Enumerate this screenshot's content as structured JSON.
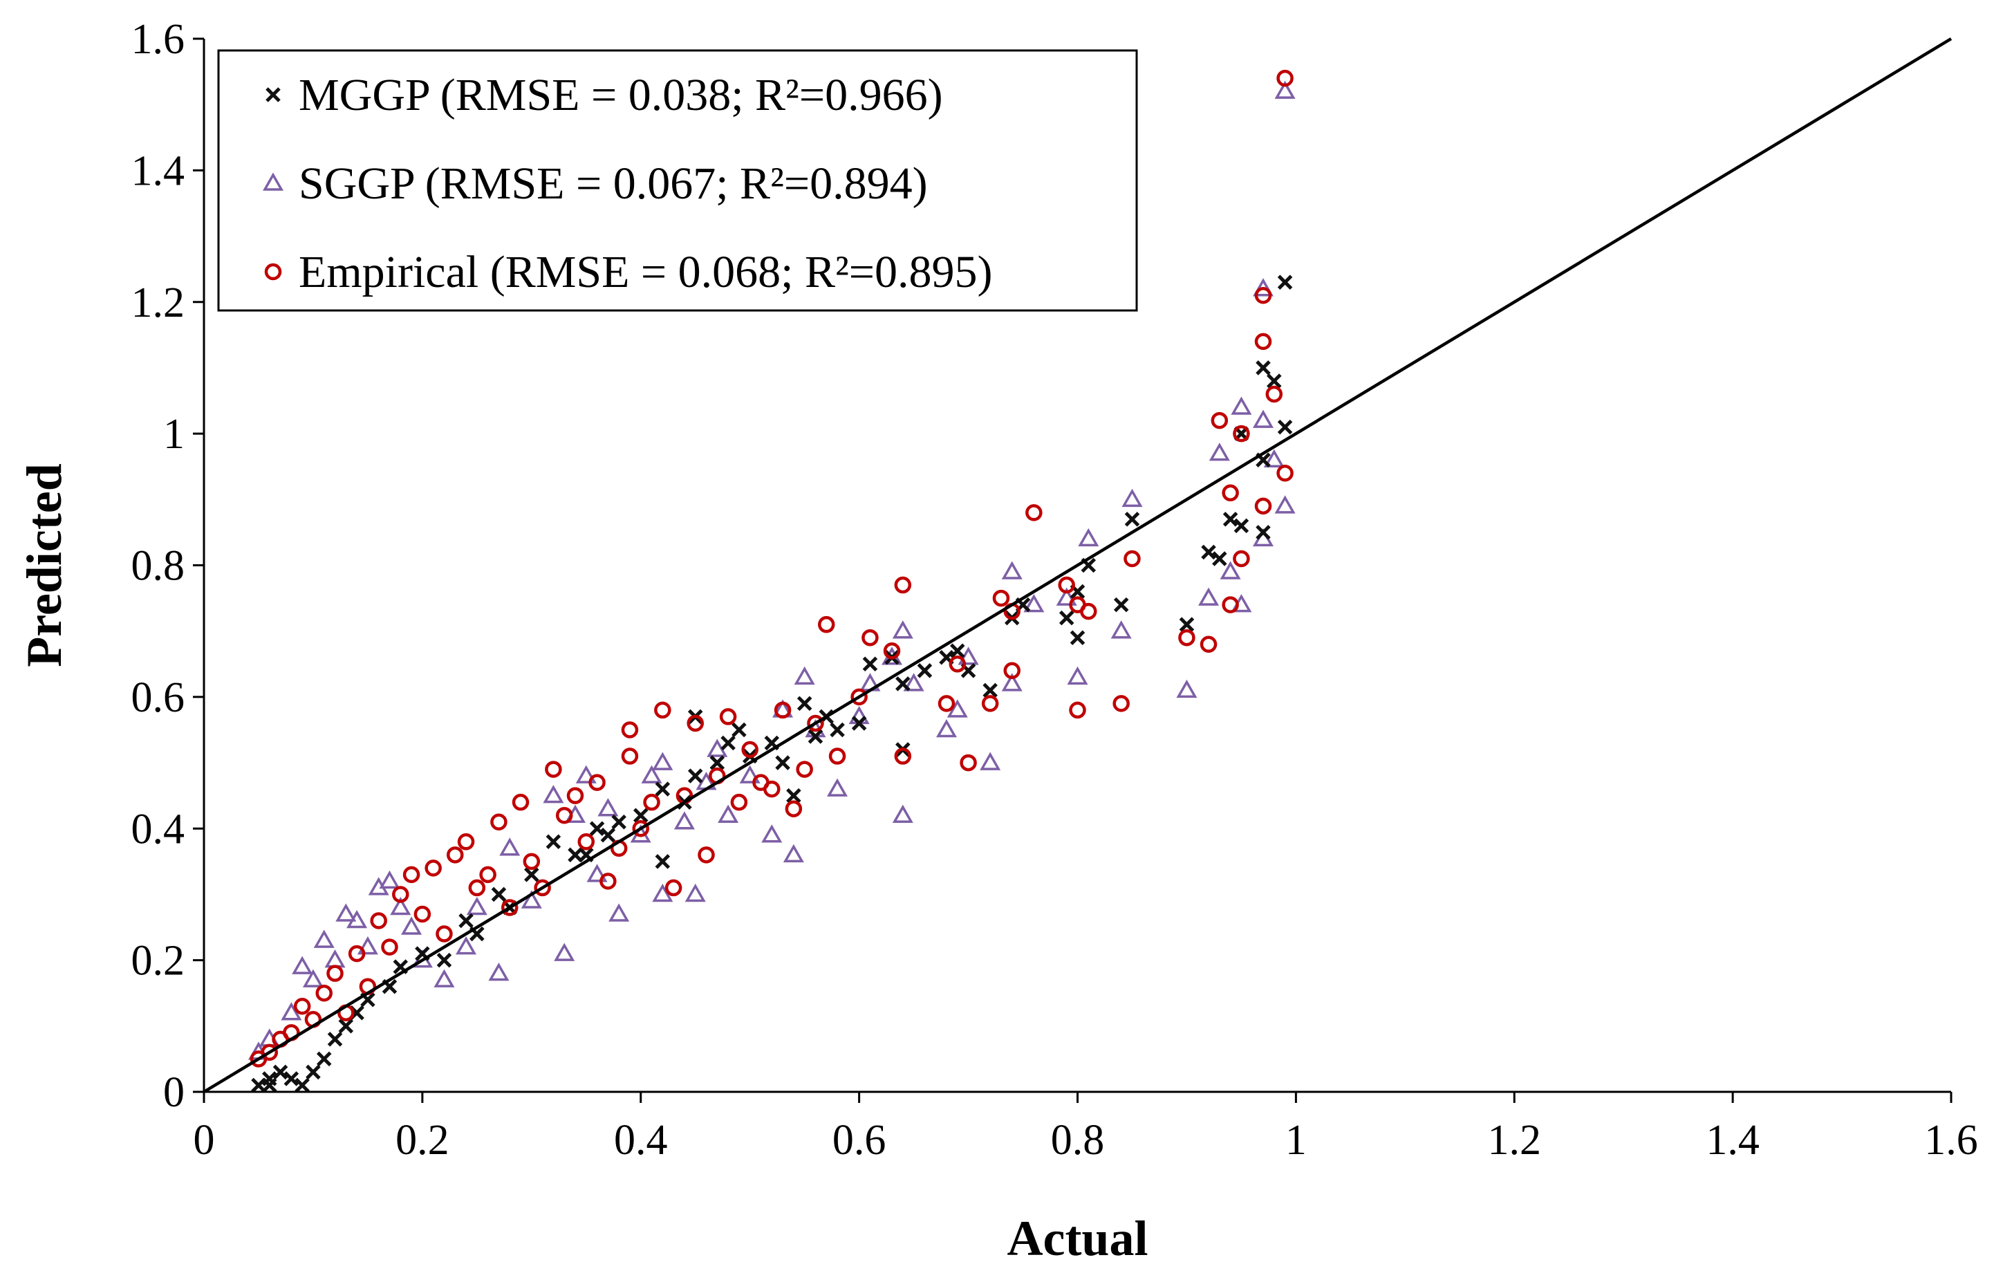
{
  "chart_data": {
    "type": "scatter",
    "title": "",
    "xlabel": "Actual",
    "ylabel": "Predicted",
    "xlim": [
      0,
      1.6
    ],
    "ylim": [
      0,
      1.6
    ],
    "xticks": [
      "0",
      "0.2",
      "0.4",
      "0.6",
      "0.8",
      "1",
      "1.2",
      "1.4",
      "1.6"
    ],
    "yticks": [
      "0",
      "0.2",
      "0.4",
      "0.6",
      "0.8",
      "1",
      "1.2",
      "1.4",
      "1.6"
    ],
    "grid": false,
    "legend_position": "top-left",
    "reference_line": {
      "label": "1:1 line",
      "from": [
        0,
        0
      ],
      "to": [
        1.6,
        1.6
      ]
    },
    "series": [
      {
        "name": "MGGP (RMSE = 0.038; R²=0.966)",
        "marker": "x",
        "color": "#111111",
        "points": [
          [
            0.05,
            0.01
          ],
          [
            0.06,
            0.02
          ],
          [
            0.07,
            0.03
          ],
          [
            0.06,
            0.01
          ],
          [
            0.08,
            0.02
          ],
          [
            0.09,
            0.01
          ],
          [
            0.1,
            0.03
          ],
          [
            0.11,
            0.05
          ],
          [
            0.12,
            0.08
          ],
          [
            0.13,
            0.1
          ],
          [
            0.14,
            0.12
          ],
          [
            0.15,
            0.14
          ],
          [
            0.17,
            0.16
          ],
          [
            0.18,
            0.19
          ],
          [
            0.2,
            0.21
          ],
          [
            0.22,
            0.2
          ],
          [
            0.24,
            0.26
          ],
          [
            0.25,
            0.24
          ],
          [
            0.27,
            0.3
          ],
          [
            0.28,
            0.28
          ],
          [
            0.3,
            0.33
          ],
          [
            0.32,
            0.38
          ],
          [
            0.34,
            0.36
          ],
          [
            0.35,
            0.36
          ],
          [
            0.36,
            0.4
          ],
          [
            0.37,
            0.39
          ],
          [
            0.38,
            0.41
          ],
          [
            0.4,
            0.42
          ],
          [
            0.42,
            0.46
          ],
          [
            0.42,
            0.35
          ],
          [
            0.44,
            0.44
          ],
          [
            0.45,
            0.48
          ],
          [
            0.45,
            0.57
          ],
          [
            0.47,
            0.5
          ],
          [
            0.48,
            0.53
          ],
          [
            0.49,
            0.55
          ],
          [
            0.5,
            0.51
          ],
          [
            0.52,
            0.53
          ],
          [
            0.53,
            0.5
          ],
          [
            0.54,
            0.45
          ],
          [
            0.55,
            0.59
          ],
          [
            0.56,
            0.54
          ],
          [
            0.57,
            0.57
          ],
          [
            0.58,
            0.55
          ],
          [
            0.6,
            0.56
          ],
          [
            0.61,
            0.65
          ],
          [
            0.63,
            0.66
          ],
          [
            0.64,
            0.62
          ],
          [
            0.64,
            0.52
          ],
          [
            0.66,
            0.64
          ],
          [
            0.68,
            0.66
          ],
          [
            0.69,
            0.67
          ],
          [
            0.7,
            0.64
          ],
          [
            0.72,
            0.61
          ],
          [
            0.74,
            0.72
          ],
          [
            0.75,
            0.74
          ],
          [
            0.79,
            0.72
          ],
          [
            0.8,
            0.69
          ],
          [
            0.8,
            0.76
          ],
          [
            0.81,
            0.8
          ],
          [
            0.84,
            0.74
          ],
          [
            0.85,
            0.87
          ],
          [
            0.9,
            0.71
          ],
          [
            0.92,
            0.82
          ],
          [
            0.93,
            0.81
          ],
          [
            0.94,
            0.87
          ],
          [
            0.95,
            0.86
          ],
          [
            0.95,
            1.0
          ],
          [
            0.97,
            0.85
          ],
          [
            0.97,
            0.96
          ],
          [
            0.97,
            1.1
          ],
          [
            0.98,
            1.08
          ],
          [
            0.99,
            1.23
          ],
          [
            0.99,
            1.01
          ]
        ]
      },
      {
        "name": "SGGP (RMSE = 0.067; R²=0.894)",
        "marker": "triangle",
        "color": "#7d5fa6",
        "points": [
          [
            0.05,
            0.06
          ],
          [
            0.06,
            0.08
          ],
          [
            0.08,
            0.12
          ],
          [
            0.09,
            0.19
          ],
          [
            0.1,
            0.17
          ],
          [
            0.11,
            0.23
          ],
          [
            0.12,
            0.2
          ],
          [
            0.13,
            0.27
          ],
          [
            0.14,
            0.26
          ],
          [
            0.15,
            0.22
          ],
          [
            0.16,
            0.31
          ],
          [
            0.17,
            0.32
          ],
          [
            0.18,
            0.28
          ],
          [
            0.19,
            0.25
          ],
          [
            0.2,
            0.2
          ],
          [
            0.22,
            0.17
          ],
          [
            0.24,
            0.22
          ],
          [
            0.25,
            0.28
          ],
          [
            0.27,
            0.18
          ],
          [
            0.28,
            0.37
          ],
          [
            0.3,
            0.29
          ],
          [
            0.32,
            0.45
          ],
          [
            0.33,
            0.21
          ],
          [
            0.34,
            0.42
          ],
          [
            0.35,
            0.48
          ],
          [
            0.36,
            0.33
          ],
          [
            0.37,
            0.43
          ],
          [
            0.38,
            0.27
          ],
          [
            0.4,
            0.39
          ],
          [
            0.41,
            0.48
          ],
          [
            0.42,
            0.5
          ],
          [
            0.42,
            0.3
          ],
          [
            0.44,
            0.41
          ],
          [
            0.45,
            0.3
          ],
          [
            0.46,
            0.47
          ],
          [
            0.47,
            0.52
          ],
          [
            0.48,
            0.42
          ],
          [
            0.5,
            0.48
          ],
          [
            0.52,
            0.39
          ],
          [
            0.53,
            0.58
          ],
          [
            0.54,
            0.36
          ],
          [
            0.55,
            0.63
          ],
          [
            0.56,
            0.55
          ],
          [
            0.58,
            0.46
          ],
          [
            0.6,
            0.57
          ],
          [
            0.61,
            0.62
          ],
          [
            0.63,
            0.66
          ],
          [
            0.64,
            0.7
          ],
          [
            0.64,
            0.42
          ],
          [
            0.65,
            0.62
          ],
          [
            0.68,
            0.55
          ],
          [
            0.69,
            0.58
          ],
          [
            0.7,
            0.66
          ],
          [
            0.72,
            0.5
          ],
          [
            0.74,
            0.79
          ],
          [
            0.74,
            0.62
          ],
          [
            0.76,
            0.74
          ],
          [
            0.79,
            0.75
          ],
          [
            0.8,
            0.63
          ],
          [
            0.81,
            0.84
          ],
          [
            0.84,
            0.7
          ],
          [
            0.85,
            0.9
          ],
          [
            0.9,
            0.61
          ],
          [
            0.92,
            0.75
          ],
          [
            0.93,
            0.97
          ],
          [
            0.94,
            0.79
          ],
          [
            0.95,
            0.74
          ],
          [
            0.95,
            1.04
          ],
          [
            0.97,
            0.84
          ],
          [
            0.97,
            1.02
          ],
          [
            0.97,
            1.22
          ],
          [
            0.98,
            0.96
          ],
          [
            0.99,
            0.89
          ],
          [
            0.99,
            1.52
          ]
        ]
      },
      {
        "name": "Empirical (RMSE = 0.068; R²=0.895)",
        "marker": "circle",
        "color": "#c00000",
        "points": [
          [
            0.05,
            0.05
          ],
          [
            0.06,
            0.06
          ],
          [
            0.07,
            0.08
          ],
          [
            0.08,
            0.09
          ],
          [
            0.09,
            0.13
          ],
          [
            0.1,
            0.11
          ],
          [
            0.11,
            0.15
          ],
          [
            0.12,
            0.18
          ],
          [
            0.13,
            0.12
          ],
          [
            0.14,
            0.21
          ],
          [
            0.15,
            0.16
          ],
          [
            0.16,
            0.26
          ],
          [
            0.17,
            0.22
          ],
          [
            0.18,
            0.3
          ],
          [
            0.19,
            0.33
          ],
          [
            0.2,
            0.27
          ],
          [
            0.21,
            0.34
          ],
          [
            0.22,
            0.24
          ],
          [
            0.23,
            0.36
          ],
          [
            0.24,
            0.38
          ],
          [
            0.25,
            0.31
          ],
          [
            0.26,
            0.33
          ],
          [
            0.27,
            0.41
          ],
          [
            0.28,
            0.28
          ],
          [
            0.29,
            0.44
          ],
          [
            0.3,
            0.35
          ],
          [
            0.31,
            0.31
          ],
          [
            0.32,
            0.49
          ],
          [
            0.33,
            0.42
          ],
          [
            0.34,
            0.45
          ],
          [
            0.35,
            0.38
          ],
          [
            0.36,
            0.47
          ],
          [
            0.37,
            0.32
          ],
          [
            0.38,
            0.37
          ],
          [
            0.39,
            0.55
          ],
          [
            0.39,
            0.51
          ],
          [
            0.4,
            0.4
          ],
          [
            0.41,
            0.44
          ],
          [
            0.42,
            0.58
          ],
          [
            0.43,
            0.31
          ],
          [
            0.44,
            0.45
          ],
          [
            0.45,
            0.56
          ],
          [
            0.46,
            0.36
          ],
          [
            0.47,
            0.48
          ],
          [
            0.48,
            0.57
          ],
          [
            0.49,
            0.44
          ],
          [
            0.5,
            0.52
          ],
          [
            0.51,
            0.47
          ],
          [
            0.52,
            0.46
          ],
          [
            0.53,
            0.58
          ],
          [
            0.54,
            0.43
          ],
          [
            0.55,
            0.49
          ],
          [
            0.56,
            0.56
          ],
          [
            0.57,
            0.71
          ],
          [
            0.58,
            0.51
          ],
          [
            0.6,
            0.6
          ],
          [
            0.61,
            0.69
          ],
          [
            0.63,
            0.67
          ],
          [
            0.64,
            0.77
          ],
          [
            0.64,
            0.51
          ],
          [
            0.68,
            0.59
          ],
          [
            0.69,
            0.65
          ],
          [
            0.7,
            0.5
          ],
          [
            0.72,
            0.59
          ],
          [
            0.73,
            0.75
          ],
          [
            0.74,
            0.64
          ],
          [
            0.74,
            0.73
          ],
          [
            0.76,
            0.88
          ],
          [
            0.79,
            0.77
          ],
          [
            0.8,
            0.74
          ],
          [
            0.8,
            0.58
          ],
          [
            0.81,
            0.73
          ],
          [
            0.84,
            0.59
          ],
          [
            0.85,
            0.81
          ],
          [
            0.9,
            0.69
          ],
          [
            0.92,
            0.68
          ],
          [
            0.93,
            1.02
          ],
          [
            0.94,
            0.91
          ],
          [
            0.94,
            0.74
          ],
          [
            0.95,
            0.81
          ],
          [
            0.95,
            1.0
          ],
          [
            0.97,
            0.89
          ],
          [
            0.97,
            1.14
          ],
          [
            0.97,
            1.21
          ],
          [
            0.98,
            1.06
          ],
          [
            0.99,
            0.94
          ],
          [
            0.99,
            1.54
          ]
        ]
      }
    ]
  }
}
